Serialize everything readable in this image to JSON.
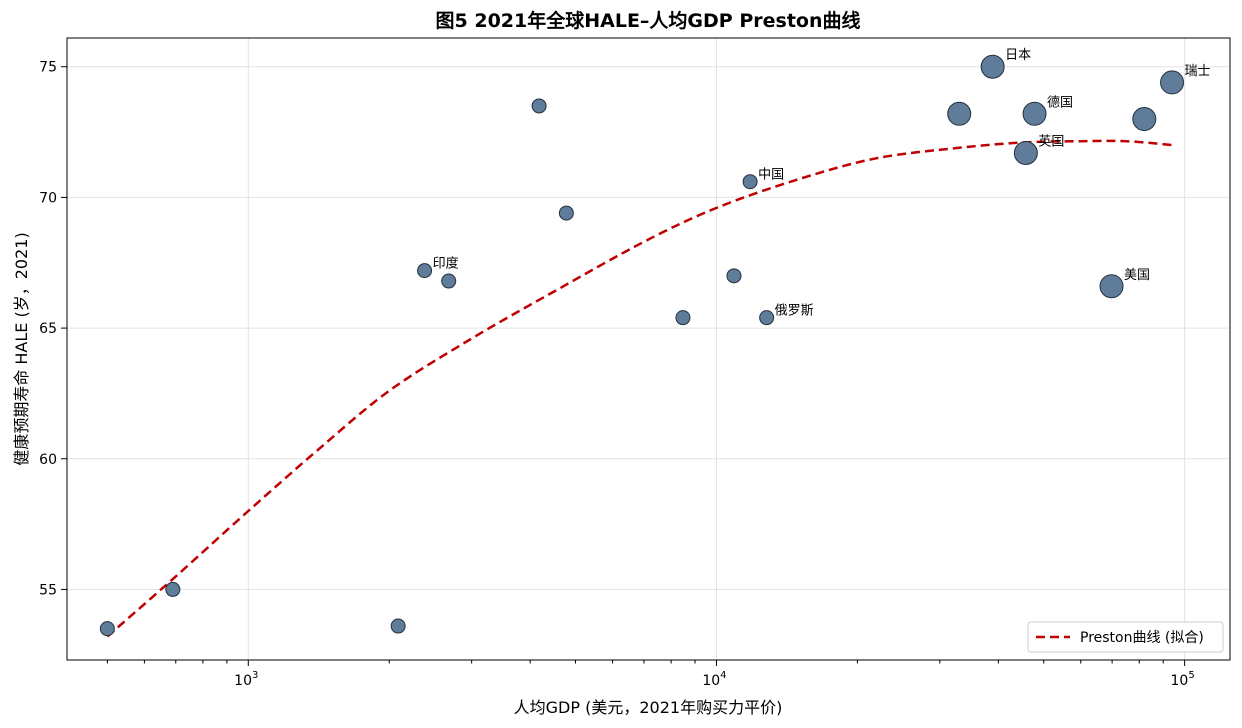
{
  "chart_data": {
    "type": "scatter",
    "title": "图5  2021年全球HALE–人均GDP Preston曲线",
    "xlabel": "人均GDP (美元，2021年购买力平价)",
    "ylabel": "健康预期寿命 HALE (岁，2021)",
    "x_scale": "log",
    "xlim": [
      410,
      125000
    ],
    "ylim": [
      52.3,
      76.1
    ],
    "x_ticks": [
      {
        "value": 1000,
        "base": "10",
        "exp": "3"
      },
      {
        "value": 10000,
        "base": "10",
        "exp": "4"
      },
      {
        "value": 100000,
        "base": "10",
        "exp": "5"
      }
    ],
    "y_ticks": [
      55,
      60,
      65,
      70,
      75
    ],
    "grid": true,
    "legend": {
      "placement": "lower-right",
      "entries": [
        "Preston曲线 (拟合)"
      ]
    },
    "points": [
      {
        "gdp": 500,
        "hale": 53.5,
        "size": 1,
        "label": ""
      },
      {
        "gdp": 690,
        "hale": 55.0,
        "size": 1,
        "label": ""
      },
      {
        "gdp": 2090,
        "hale": 53.6,
        "size": 1,
        "label": ""
      },
      {
        "gdp": 2380,
        "hale": 67.2,
        "size": 1,
        "label": "印度"
      },
      {
        "gdp": 2680,
        "hale": 66.8,
        "size": 1,
        "label": ""
      },
      {
        "gdp": 4180,
        "hale": 73.5,
        "size": 1,
        "label": ""
      },
      {
        "gdp": 4780,
        "hale": 69.4,
        "size": 1,
        "label": ""
      },
      {
        "gdp": 8480,
        "hale": 65.4,
        "size": 1,
        "label": ""
      },
      {
        "gdp": 10900,
        "hale": 67.0,
        "size": 1,
        "label": ""
      },
      {
        "gdp": 11800,
        "hale": 70.6,
        "size": 1,
        "label": "中国"
      },
      {
        "gdp": 12800,
        "hale": 65.4,
        "size": 1,
        "label": "俄罗斯"
      },
      {
        "gdp": 33000,
        "hale": 73.2,
        "size": 3,
        "label": ""
      },
      {
        "gdp": 38900,
        "hale": 75.0,
        "size": 3,
        "label": "日本"
      },
      {
        "gdp": 45800,
        "hale": 71.7,
        "size": 3,
        "label": "英国"
      },
      {
        "gdp": 47800,
        "hale": 73.2,
        "size": 3,
        "label": "德国"
      },
      {
        "gdp": 69800,
        "hale": 66.6,
        "size": 3,
        "label": "美国"
      },
      {
        "gdp": 82000,
        "hale": 73.0,
        "size": 3,
        "label": ""
      },
      {
        "gdp": 94000,
        "hale": 74.4,
        "size": 3,
        "label": "瑞士"
      }
    ],
    "fit_curve": {
      "name": "Preston曲线 (拟合)",
      "x": [
        500,
        700,
        1000,
        1400,
        2000,
        3000,
        4500,
        7000,
        10000,
        15000,
        22000,
        33000,
        45000,
        60000,
        75000,
        95000
      ],
      "y": [
        53.2,
        55.5,
        58.0,
        60.3,
        62.6,
        64.6,
        66.4,
        68.3,
        69.6,
        70.7,
        71.5,
        71.9,
        72.1,
        72.15,
        72.15,
        72.0
      ]
    }
  }
}
